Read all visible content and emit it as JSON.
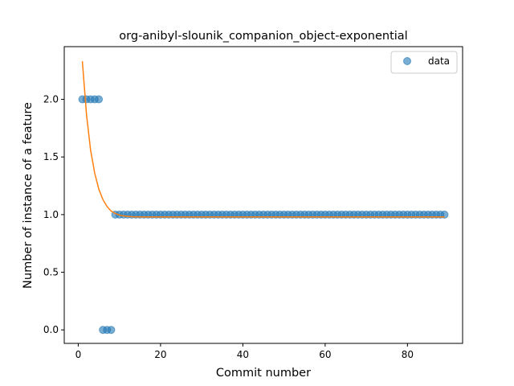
{
  "chart_data": {
    "type": "scatter",
    "title": "org-anibyl-slounik_companion_object-exponential",
    "xlabel": "Commit number",
    "ylabel": "Number of instance of a feature",
    "xlim": [
      -3.4,
      93.4
    ],
    "ylim": [
      -0.117,
      2.457
    ],
    "xticks": [
      0,
      20,
      40,
      60,
      80
    ],
    "xtick_labels": [
      "0",
      "20",
      "40",
      "60",
      "80"
    ],
    "yticks": [
      0.0,
      0.5,
      1.0,
      1.5,
      2.0
    ],
    "ytick_labels": [
      "0.0",
      "0.5",
      "1.0",
      "1.5",
      "2.0"
    ],
    "grid": false,
    "legend_position": "upper right",
    "colors": {
      "data": "#1f77b4",
      "fit": "#ff7f0e"
    },
    "series": [
      {
        "name": "data",
        "kind": "scatter",
        "x": [
          1,
          2,
          3,
          4,
          5,
          6,
          7,
          8,
          9,
          10,
          11,
          12,
          13,
          14,
          15,
          16,
          17,
          18,
          19,
          20,
          21,
          22,
          23,
          24,
          25,
          26,
          27,
          28,
          29,
          30,
          31,
          32,
          33,
          34,
          35,
          36,
          37,
          38,
          39,
          40,
          41,
          42,
          43,
          44,
          45,
          46,
          47,
          48,
          49,
          50,
          51,
          52,
          53,
          54,
          55,
          56,
          57,
          58,
          59,
          60,
          61,
          62,
          63,
          64,
          65,
          66,
          67,
          68,
          69,
          70,
          71,
          72,
          73,
          74,
          75,
          76,
          77,
          78,
          79,
          80,
          81,
          82,
          83,
          84,
          85,
          86,
          87,
          88,
          89
        ],
        "y": [
          2,
          2,
          2,
          2,
          2,
          0,
          0,
          0,
          1,
          1,
          1,
          1,
          1,
          1,
          1,
          1,
          1,
          1,
          1,
          1,
          1,
          1,
          1,
          1,
          1,
          1,
          1,
          1,
          1,
          1,
          1,
          1,
          1,
          1,
          1,
          1,
          1,
          1,
          1,
          1,
          1,
          1,
          1,
          1,
          1,
          1,
          1,
          1,
          1,
          1,
          1,
          1,
          1,
          1,
          1,
          1,
          1,
          1,
          1,
          1,
          1,
          1,
          1,
          1,
          1,
          1,
          1,
          1,
          1,
          1,
          1,
          1,
          1,
          1,
          1,
          1,
          1,
          1,
          1,
          1,
          1,
          1,
          1,
          1,
          1,
          1,
          1,
          1,
          1
        ]
      },
      {
        "kind": "line",
        "x": [
          1,
          2,
          3,
          4,
          5,
          6,
          7,
          8,
          9,
          10,
          11,
          12,
          13,
          14,
          15,
          16,
          17,
          18,
          19,
          20,
          25,
          30,
          40,
          50,
          60,
          70,
          80,
          89
        ],
        "y": [
          2.33,
          1.87,
          1.56,
          1.36,
          1.22,
          1.13,
          1.07,
          1.03,
          1.01,
          0.996,
          0.989,
          0.985,
          0.982,
          0.981,
          0.98,
          0.98,
          0.98,
          0.98,
          0.98,
          0.98,
          0.98,
          0.98,
          0.98,
          0.98,
          0.98,
          0.98,
          0.98,
          0.98
        ]
      }
    ]
  }
}
